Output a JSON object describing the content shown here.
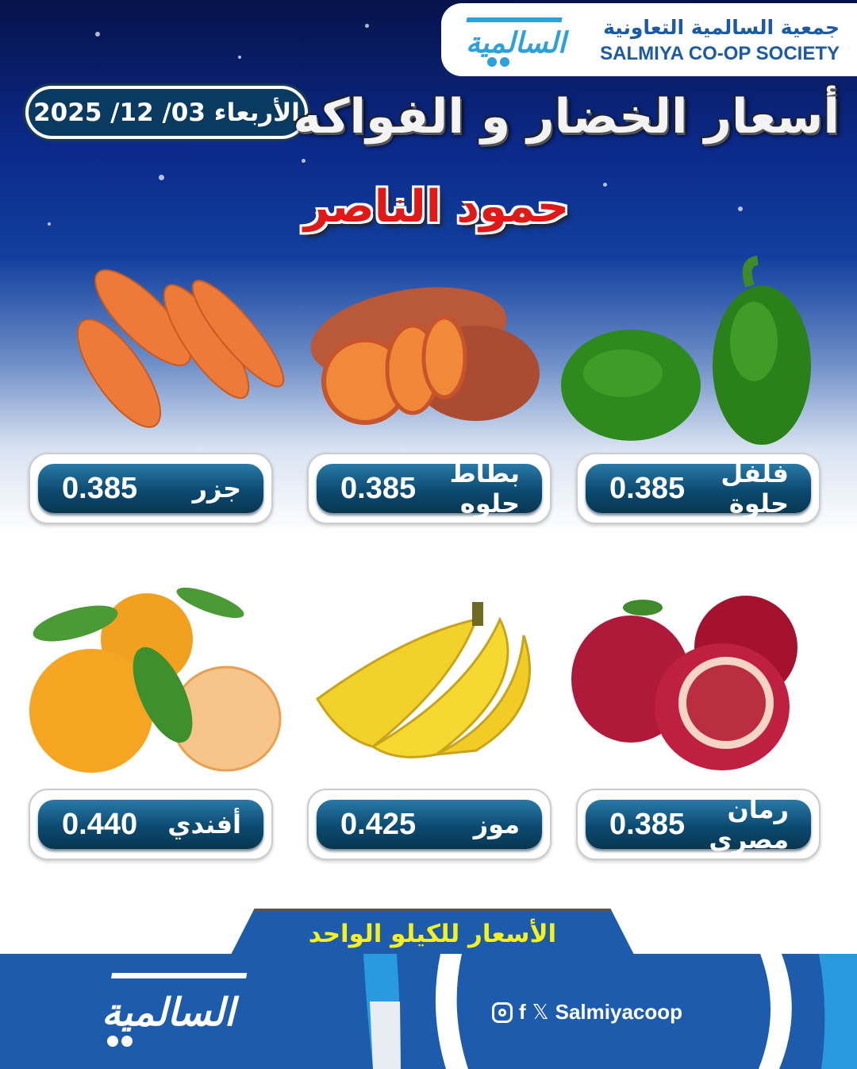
{
  "header": {
    "logo_ar": "جمعية السالمية التعاونية",
    "logo_en": "SALMIYA CO-OP SOCIETY",
    "logo_mark": "السالمية",
    "title": "أسعار الخضار و الفواكه",
    "date": "الأربعاء 03/ 12/ 2025",
    "subtitle": "حمود الناصر"
  },
  "products": [
    {
      "name": "فلفل حلوة",
      "price": "0.385",
      "icon": "bell-pepper"
    },
    {
      "name": "بطاط حلوه",
      "price": "0.385",
      "icon": "sweet-potato"
    },
    {
      "name": "جزر",
      "price": "0.385",
      "icon": "carrot"
    },
    {
      "name": "رمان مصري",
      "price": "0.385",
      "icon": "pomegranate"
    },
    {
      "name": "موز",
      "price": "0.425",
      "icon": "banana"
    },
    {
      "name": "أفندي",
      "price": "0.440",
      "icon": "mandarin"
    }
  ],
  "footer": {
    "note": "الأسعار للكيلو الواحد",
    "handle": "Salmiyacoop",
    "logo_mark": "السالمية",
    "social_icons": [
      "instagram",
      "facebook",
      "x"
    ]
  },
  "colors": {
    "brand_blue": "#1d5cad",
    "price_pill": "#0c4a70",
    "note_yellow": "#f6f01d",
    "subtitle_red": "#e01818"
  }
}
